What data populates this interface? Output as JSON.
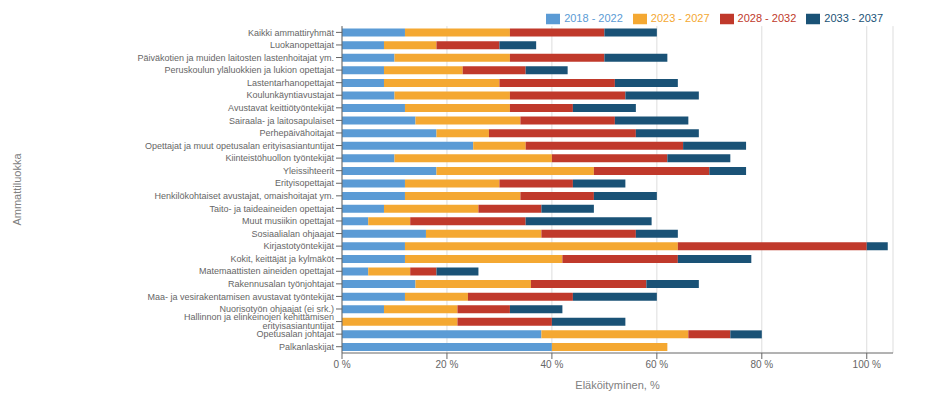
{
  "chart_data": {
    "type": "bar",
    "orientation": "horizontal",
    "stacked": true,
    "xlabel": "Eläköityminen, %",
    "ylabel": "Ammattiluokka",
    "categories": [
      "Kaikki ammattiryhmät",
      "Luokanopettajat",
      "Päiväkotien ja muiden laitosten lastenhoitajat ym.",
      "Peruskoulun yläluokkien ja lukion opettajat",
      "Lastentarhanopettajat",
      "Koulunkäyntiavustajat",
      "Avustavat keittiötyöntekijät",
      "Sairaala- ja laitosapulaiset",
      "Perhepäivähoitajat",
      "Opettajat ja muut opetusalan erityisasiantuntijat",
      "Kiinteistöhuollon työntekijät",
      "Yleissihteerit",
      "Erityisopettajat",
      "Henkilökohtaiset avustajat, omaishoitajat ym.",
      "Taito- ja taideaineiden opettajat",
      "Muut musiikin opettajat",
      "Sosiaalialan ohjaajat",
      "Kirjastotyöntekijät",
      "Kokit, keittäjät ja kylmäköt",
      "Matemaattisten aineiden opettajat",
      "Rakennusalan työnjohtajat",
      "Maa- ja vesirakentamisen avustavat työntekijät",
      "Nuorisotyön ohjaajat (ei srk.)",
      "Hallinnon ja elinkeinojen kehittämisen erityisasiantuntijat",
      "Opetusalan johtajat",
      "Palkanlaskijat"
    ],
    "series": [
      {
        "name": "2018 - 2022",
        "color": "#5B9BD5",
        "values": [
          12,
          8,
          10,
          8,
          8,
          10,
          12,
          14,
          18,
          25,
          10,
          18,
          12,
          12,
          8,
          5,
          16,
          12,
          12,
          5,
          14,
          12,
          8,
          0,
          38,
          40
        ]
      },
      {
        "name": "2023 - 2027",
        "color": "#F4A832",
        "values": [
          20,
          10,
          22,
          15,
          22,
          22,
          20,
          20,
          10,
          10,
          30,
          30,
          18,
          22,
          18,
          8,
          22,
          52,
          30,
          8,
          22,
          12,
          14,
          22,
          28,
          22
        ]
      },
      {
        "name": "2028 - 2032",
        "color": "#C0392B",
        "values": [
          18,
          12,
          18,
          12,
          22,
          22,
          12,
          18,
          28,
          30,
          22,
          22,
          14,
          14,
          12,
          22,
          18,
          36,
          22,
          5,
          22,
          20,
          10,
          18,
          8,
          0
        ]
      },
      {
        "name": "2033 - 2037",
        "color": "#1A5276",
        "values": [
          10,
          7,
          12,
          8,
          12,
          14,
          12,
          14,
          12,
          12,
          12,
          7,
          10,
          12,
          10,
          24,
          8,
          4,
          14,
          8,
          10,
          16,
          10,
          14,
          6,
          0
        ]
      }
    ],
    "xlim": [
      0,
      105
    ],
    "xticks": [
      {
        "value": 0,
        "label": "0 %"
      },
      {
        "value": 20,
        "label": "20 %"
      },
      {
        "value": 40,
        "label": "40 %"
      },
      {
        "value": 60,
        "label": "60 %"
      },
      {
        "value": 80,
        "label": "80 %"
      },
      {
        "value": 100,
        "label": "100 %"
      }
    ],
    "grid": true,
    "legend": "upper right"
  }
}
